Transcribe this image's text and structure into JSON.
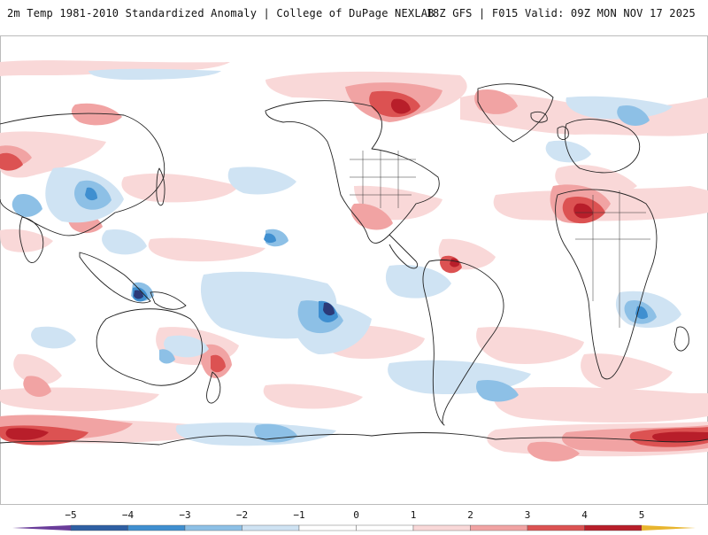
{
  "header": {
    "title": "2m Temp 1981-2010 Standardized Anomaly | College of DuPage NEXLAB",
    "run_info": "18Z GFS | F015 Valid: 09Z MON NOV 17 2025"
  },
  "map": {
    "projection": "global equirectangular, Pacific-centered",
    "variable": "2m temperature standardized anomaly"
  },
  "colorbar": {
    "ticks": [
      "−5",
      "−4",
      "−3",
      "−2",
      "−1",
      "0",
      "1",
      "2",
      "3",
      "4",
      "5"
    ],
    "colors": {
      "n6": "#6a3d9a",
      "n5": "#2b3a78",
      "n4": "#2e5fa3",
      "n3": "#3f8fd0",
      "n2": "#8dc0e6",
      "n1": "#cfe3f3",
      "z": "#ffffff",
      "p1": "#f9d8d8",
      "p2": "#f1a3a3",
      "p3": "#dc5252",
      "p4": "#b81e2a",
      "p5": "#7d0d14",
      "p6": "#e8b52e"
    }
  },
  "palette": {
    "cold_extreme": "#2b3a78",
    "cold_strong": "#3f8fd0",
    "cold_light": "#cfe3f3",
    "warm_light": "#f9d8d8",
    "warm_mid": "#f1a3a3",
    "warm_strong": "#dc5252",
    "warm_extreme": "#b81e2a",
    "coastline": "#222222"
  }
}
